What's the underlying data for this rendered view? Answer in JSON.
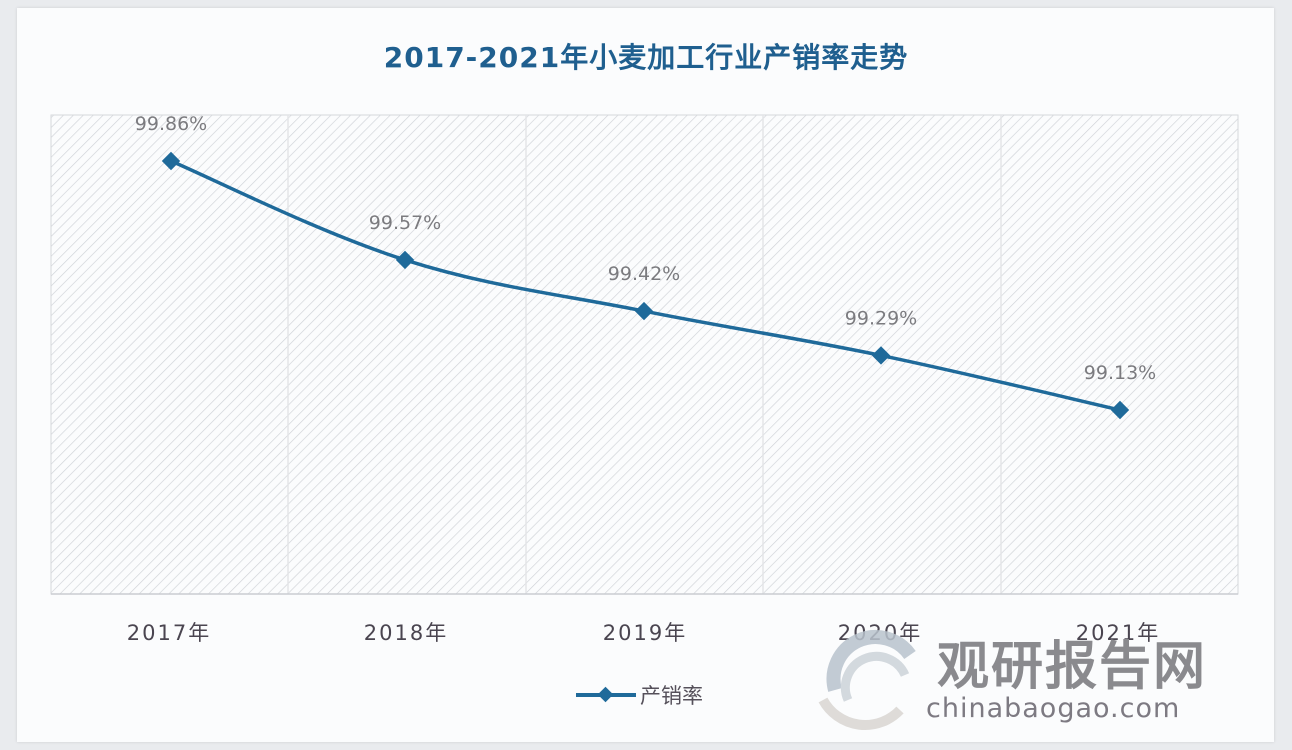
{
  "chart_data": {
    "type": "line",
    "title": "2017-2021年小麦加工行业产销率走势",
    "categories": [
      "2017年",
      "2018年",
      "2019年",
      "2020年",
      "2021年"
    ],
    "series": [
      {
        "name": "产销率",
        "values": [
          99.86,
          99.57,
          99.42,
          99.29,
          99.13
        ],
        "labels": [
          "99.86%",
          "99.57%",
          "99.42%",
          "99.29%",
          "99.13%"
        ],
        "color": "#1f6a9a",
        "marker": "diamond"
      }
    ],
    "xlabel": "",
    "ylabel": "",
    "y_axis_visible": false,
    "grid": "vertical",
    "plot_background": "diagonal-hatch",
    "legend_position": "bottom"
  },
  "title": "2017-2021年小麦加工行业产销率走势",
  "legend": {
    "label": "产销率"
  },
  "watermark": {
    "name": "观研报告网",
    "domain": "chinabaogao.com"
  },
  "colors": {
    "title": "#1f5f8f",
    "line": "#1f6a9a",
    "label": "#7b7b7f"
  }
}
